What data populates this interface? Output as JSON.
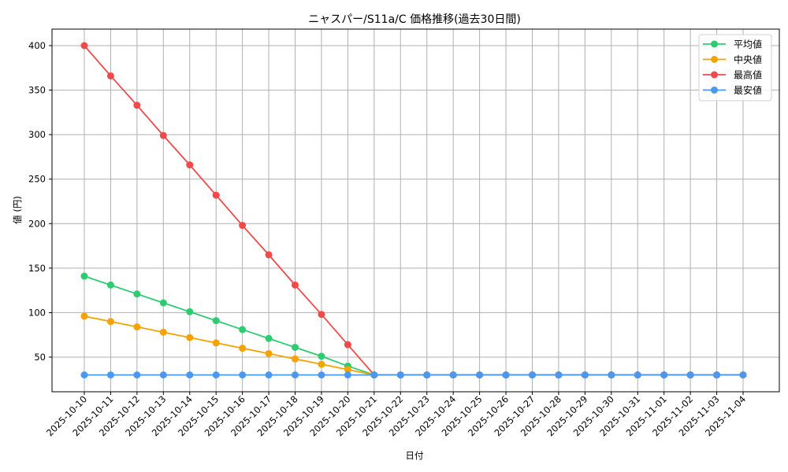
{
  "chart_data": {
    "type": "line",
    "title": "ニャスパー/S11a/C 価格推移(過去30日間)",
    "xlabel": "日付",
    "ylabel": "値 (円)",
    "ylim": [
      12,
      418
    ],
    "yticks": [
      50,
      100,
      150,
      200,
      250,
      300,
      350,
      400
    ],
    "grid": true,
    "legend_position": "upper right",
    "categories": [
      "2025-10-10",
      "2025-10-11",
      "2025-10-12",
      "2025-10-13",
      "2025-10-14",
      "2025-10-15",
      "2025-10-16",
      "2025-10-17",
      "2025-10-18",
      "2025-10-19",
      "2025-10-20",
      "2025-10-21",
      "2025-10-22",
      "2025-10-23",
      "2025-10-24",
      "2025-10-25",
      "2025-10-26",
      "2025-10-27",
      "2025-10-28",
      "2025-10-29",
      "2025-10-30",
      "2025-10-31",
      "2025-11-01",
      "2025-11-02",
      "2025-11-03",
      "2025-11-04"
    ],
    "series": [
      {
        "name": "平均値",
        "color": "#2ecc71",
        "values": [
          141,
          131,
          121,
          111,
          101,
          91,
          81,
          71,
          61,
          51,
          40,
          30,
          30,
          30,
          30,
          30,
          30,
          30,
          30,
          30,
          30,
          30,
          30,
          30,
          30,
          30
        ]
      },
      {
        "name": "中央値",
        "color": "#f5a300",
        "values": [
          96,
          90,
          84,
          78,
          72,
          66,
          60,
          54,
          48,
          42,
          36,
          30,
          30,
          30,
          30,
          30,
          30,
          30,
          30,
          30,
          30,
          30,
          30,
          30,
          30,
          30
        ]
      },
      {
        "name": "最高値",
        "color": "#f04a4a",
        "values": [
          400,
          366,
          333,
          299,
          266,
          232,
          198,
          165,
          131,
          98,
          64,
          30,
          30,
          30,
          30,
          30,
          30,
          30,
          30,
          30,
          30,
          30,
          30,
          30,
          30,
          30
        ]
      },
      {
        "name": "最安値",
        "color": "#4a98f0",
        "values": [
          30,
          30,
          30,
          30,
          30,
          30,
          30,
          30,
          30,
          30,
          30,
          30,
          30,
          30,
          30,
          30,
          30,
          30,
          30,
          30,
          30,
          30,
          30,
          30,
          30,
          30
        ]
      }
    ]
  }
}
